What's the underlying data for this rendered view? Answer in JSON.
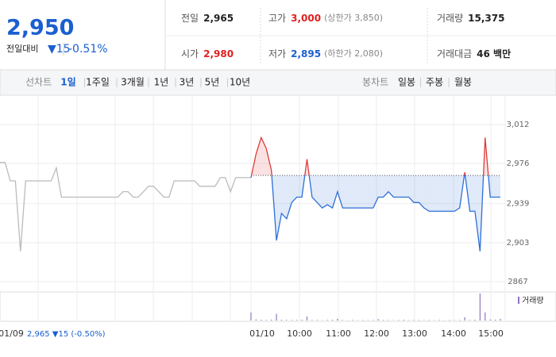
{
  "quote": {
    "price": "2,950",
    "change_label": "전일대비",
    "change": "▼15",
    "change_pct": "-0.51%",
    "color": "#1a5fd0"
  },
  "stats": [
    {
      "label": "전일",
      "value": "2,965",
      "color": "#222"
    },
    {
      "label": "고가",
      "value": "3,000",
      "note": "(상한가 3,850)",
      "color": "#e02020"
    },
    {
      "label": "거래량",
      "value": "15,375",
      "color": "#222"
    },
    {
      "label": "시가",
      "value": "2,980",
      "color": "#e02020"
    },
    {
      "label": "저가",
      "value": "2,895",
      "note": "(하한가 2,080)",
      "color": "#1a5fd0"
    },
    {
      "label": "거래대금",
      "value": "46 백만",
      "color": "#222"
    }
  ],
  "tabs": {
    "line_label": "선차트",
    "line_periods": [
      "1일",
      "1주일",
      "3개월",
      "1년",
      "3년",
      "5년",
      "10년"
    ],
    "selected": 0,
    "candle_label": "봉차트",
    "candle_periods": [
      "일봉",
      "주봉",
      "월봉"
    ]
  },
  "chart_data": {
    "type": "line",
    "ylim": [
      2867,
      3012
    ],
    "yticks": [
      2867,
      {
        "value": 2903,
        "label": "2,903"
      },
      {
        "value": 2939,
        "label": "2,939"
      },
      {
        "value": 2976,
        "label": "2,976"
      },
      {
        "value": 3012,
        "label": "3,012"
      }
    ],
    "baseline": 2965,
    "prev_date": "01/09",
    "prev_summary": "2,965 ▼15 (-0.50%)",
    "xlabels": [
      "01/10",
      "10:00",
      "11:00",
      "12:00",
      "13:00",
      "14:00",
      "15:00"
    ],
    "series": [
      {
        "color": "#bbbbbb",
        "values": [
          2977,
          2977,
          2960,
          2960,
          2895,
          2960,
          2960,
          2960,
          2960,
          2960,
          2960,
          2972,
          2945,
          2945,
          2945,
          2945,
          2945,
          2945,
          2945,
          2945,
          2945,
          2945,
          2945,
          2945,
          2950,
          2950,
          2945,
          2945,
          2950,
          2955,
          2955,
          2950,
          2945,
          2945,
          2960,
          2960,
          2960,
          2960,
          2960,
          2955,
          2955,
          2955,
          2955,
          2963,
          2963,
          2950,
          2963,
          2963,
          2963,
          2963
        ]
      },
      {
        "color_up": "#e03a3a",
        "color_down": "#2d6fd8",
        "values": [
          2963,
          2985,
          3000,
          2990,
          2970,
          2905,
          2930,
          2925,
          2940,
          2945,
          2945,
          2980,
          2945,
          2940,
          2935,
          2938,
          2935,
          2950,
          2935,
          2935,
          2935,
          2935,
          2935,
          2935,
          2935,
          2945,
          2945,
          2950,
          2945,
          2945,
          2945,
          2945,
          2940,
          2940,
          2935,
          2932,
          2932,
          2932,
          2932,
          2932,
          2932,
          2935,
          2968,
          2932,
          2932,
          2895,
          3000,
          2945,
          2945,
          2945
        ]
      },
      {
        "name": "거래량",
        "color": "#8e77c0",
        "values": [
          30,
          4,
          3,
          2,
          3,
          25,
          3,
          2,
          2,
          2,
          3,
          15,
          2,
          2,
          1,
          2,
          3,
          6,
          2,
          1,
          2,
          1,
          2,
          1,
          2,
          5,
          2,
          2,
          1,
          2,
          3,
          1,
          2,
          2,
          1,
          2,
          1,
          2,
          1,
          2,
          1,
          2,
          12,
          2,
          3,
          100,
          30,
          4,
          3,
          6
        ]
      }
    ]
  }
}
